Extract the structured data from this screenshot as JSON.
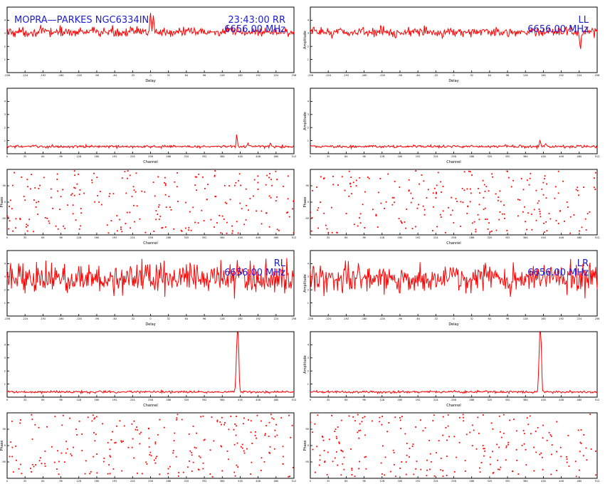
{
  "header": {
    "source": "MOPRA—PARKES NGC6334IN",
    "time_pol": "23:43:00  RR"
  },
  "colors": {
    "data": "#ff0000",
    "annotation": "#1c1cd0",
    "axes": "#000000"
  },
  "chart_data": [
    {
      "id": "rr-delay",
      "pol": "RR",
      "type": "line",
      "xlabel": "Delay",
      "ylabel": "",
      "freq": "6656.00 MHz",
      "xlim": [
        -256,
        256
      ],
      "ylim": [
        0,
        5
      ],
      "xticks": [
        -256,
        -224,
        -192,
        -160,
        -128,
        -96,
        -64,
        -32,
        0,
        32,
        64,
        96,
        128,
        160,
        192,
        224,
        256
      ],
      "yticks": [
        1,
        2,
        3,
        4
      ],
      "series": [
        {
          "baseline": 3.1,
          "noise": 0.35,
          "peaks": [
            [
              0,
              1.6
            ],
            [
              5,
              1.3
            ]
          ]
        }
      ]
    },
    {
      "id": "ll-delay",
      "pol": "LL",
      "type": "line",
      "xlabel": "Delay",
      "ylabel": "Amplitude",
      "freq": "6656.00 MHz",
      "xlim": [
        -256,
        256
      ],
      "ylim": [
        0,
        5
      ],
      "xticks": [
        -256,
        -224,
        -192,
        -160,
        -128,
        -96,
        -64,
        -32,
        0,
        32,
        64,
        96,
        128,
        160,
        192,
        224,
        256
      ],
      "yticks": [
        1,
        2,
        3,
        4
      ],
      "series": [
        {
          "baseline": 3.1,
          "noise": 0.35,
          "peaks": [
            [
              226,
              -1.3
            ]
          ]
        }
      ]
    },
    {
      "id": "rr-channel",
      "pol": "RR",
      "type": "line",
      "xlabel": "Channel",
      "ylabel": "",
      "freq": "",
      "xlim": [
        0,
        512
      ],
      "ylim": [
        0,
        5
      ],
      "xticks": [
        0,
        32,
        64,
        96,
        128,
        160,
        192,
        224,
        256,
        288,
        320,
        352,
        384,
        416,
        448,
        480,
        512
      ],
      "yticks": [
        1,
        2,
        3,
        4
      ],
      "series": [
        {
          "baseline": 0.55,
          "noise": 0.1,
          "peaks": [
            [
              410,
              0.85
            ],
            [
              430,
              0.25
            ],
            [
              470,
              0.25
            ]
          ]
        }
      ]
    },
    {
      "id": "ll-channel",
      "pol": "LL",
      "type": "line",
      "xlabel": "Channel",
      "ylabel": "Amplitude",
      "freq": "",
      "xlim": [
        0,
        512
      ],
      "ylim": [
        0,
        5
      ],
      "xticks": [
        0,
        32,
        64,
        96,
        128,
        160,
        192,
        224,
        256,
        288,
        320,
        352,
        384,
        416,
        448,
        480,
        512
      ],
      "yticks": [
        1,
        2,
        3,
        4
      ],
      "series": [
        {
          "baseline": 0.55,
          "noise": 0.1,
          "peaks": [
            [
              410,
              0.55
            ],
            [
              420,
              0.2
            ]
          ]
        }
      ]
    },
    {
      "id": "rr-phase",
      "pol": "RR",
      "type": "scatter",
      "xlabel": "Channel",
      "ylabel": "Phase",
      "freq": "",
      "xlim": [
        0,
        512
      ],
      "ylim": [
        -180,
        180
      ],
      "xticks": [
        0,
        32,
        64,
        96,
        128,
        160,
        192,
        224,
        256,
        288,
        320,
        352,
        384,
        416,
        448,
        480,
        512
      ],
      "yticks": [
        -90,
        0,
        90
      ],
      "series": [
        {
          "points": 240,
          "seed": 11
        }
      ]
    },
    {
      "id": "ll-phase",
      "pol": "LL",
      "type": "scatter",
      "xlabel": "Channel",
      "ylabel": "Phase",
      "freq": "",
      "xlim": [
        0,
        512
      ],
      "ylim": [
        -180,
        180
      ],
      "xticks": [
        0,
        32,
        64,
        96,
        128,
        160,
        192,
        224,
        256,
        288,
        320,
        352,
        384,
        416,
        448,
        480,
        512
      ],
      "yticks": [
        -90,
        0,
        90
      ],
      "series": [
        {
          "points": 240,
          "seed": 23
        }
      ]
    },
    {
      "id": "rl-delay",
      "pol": "RL",
      "type": "line",
      "xlabel": "Delay",
      "ylabel": "",
      "freq": "6656.00 MHz",
      "xlim": [
        -256,
        256
      ],
      "ylim": [
        0,
        5
      ],
      "xticks": [
        -256,
        -224,
        -192,
        -160,
        -128,
        -96,
        -64,
        -32,
        0,
        32,
        64,
        96,
        128,
        160,
        192,
        224,
        256
      ],
      "yticks": [
        1,
        2,
        3,
        4
      ],
      "series": [
        {
          "baseline": 2.9,
          "noise": 1.1,
          "peaks": []
        }
      ]
    },
    {
      "id": "lr-delay",
      "pol": "LR",
      "type": "line",
      "xlabel": "Delay",
      "ylabel": "Amplitude",
      "freq": "6656.00 MHz",
      "xlim": [
        -256,
        256
      ],
      "ylim": [
        0,
        5
      ],
      "xticks": [
        -256,
        -224,
        -192,
        -160,
        -128,
        -96,
        -64,
        -32,
        0,
        32,
        64,
        96,
        128,
        160,
        192,
        224,
        256
      ],
      "yticks": [
        1,
        2,
        3,
        4
      ],
      "series": [
        {
          "baseline": 2.9,
          "noise": 1.1,
          "peaks": []
        }
      ]
    },
    {
      "id": "rl-channel",
      "pol": "RL",
      "type": "line",
      "xlabel": "Channel",
      "ylabel": "",
      "freq": "",
      "xlim": [
        0,
        512
      ],
      "ylim": [
        0,
        5
      ],
      "xticks": [
        0,
        32,
        64,
        96,
        128,
        160,
        192,
        224,
        256,
        288,
        320,
        352,
        384,
        416,
        448,
        480,
        512
      ],
      "yticks": [
        1,
        2,
        3,
        4
      ],
      "series": [
        {
          "baseline": 0.4,
          "noise": 0.08,
          "peaks": [
            [
              411,
              4.3
            ],
            [
              413,
              3.1
            ],
            [
              409,
              1.6
            ]
          ]
        }
      ]
    },
    {
      "id": "lr-channel",
      "pol": "LR",
      "type": "line",
      "xlabel": "Channel",
      "ylabel": "Amplitude",
      "freq": "",
      "xlim": [
        0,
        512
      ],
      "ylim": [
        0,
        5
      ],
      "xticks": [
        0,
        32,
        64,
        96,
        128,
        160,
        192,
        224,
        256,
        288,
        320,
        352,
        384,
        416,
        448,
        480,
        512
      ],
      "yticks": [
        1,
        2,
        3,
        4
      ],
      "series": [
        {
          "baseline": 0.4,
          "noise": 0.08,
          "peaks": [
            [
              410,
              4.3
            ],
            [
              412,
              3.1
            ],
            [
              408,
              1.6
            ]
          ]
        }
      ]
    },
    {
      "id": "rl-phase",
      "pol": "RL",
      "type": "scatter",
      "xlabel": "Channel",
      "ylabel": "Phase",
      "freq": "",
      "xlim": [
        0,
        512
      ],
      "ylim": [
        -180,
        180
      ],
      "xticks": [
        0,
        32,
        64,
        96,
        128,
        160,
        192,
        224,
        256,
        288,
        320,
        352,
        384,
        416,
        448,
        480,
        512
      ],
      "yticks": [
        -90,
        0,
        90
      ],
      "series": [
        {
          "points": 240,
          "seed": 37
        }
      ]
    },
    {
      "id": "lr-phase",
      "pol": "LR",
      "type": "scatter",
      "xlabel": "Channel",
      "ylabel": "Phase",
      "freq": "",
      "xlim": [
        0,
        512
      ],
      "ylim": [
        -180,
        180
      ],
      "xticks": [
        0,
        32,
        64,
        96,
        128,
        160,
        192,
        224,
        256,
        288,
        320,
        352,
        384,
        416,
        448,
        480,
        512
      ],
      "yticks": [
        -90,
        0,
        90
      ],
      "series": [
        {
          "points": 240,
          "seed": 53
        }
      ]
    }
  ]
}
